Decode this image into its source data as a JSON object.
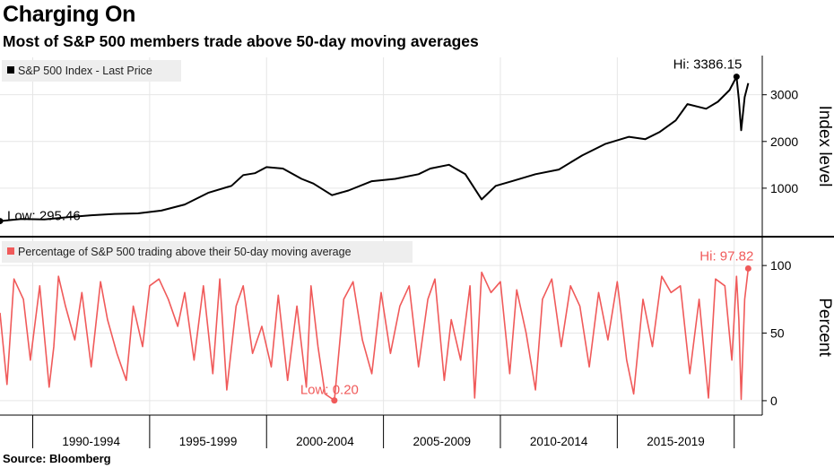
{
  "title": "Charging On",
  "subtitle": "Most of S&P 500 members trade above 50-day moving averages",
  "source": "Source: Bloomberg",
  "chart_data": [
    {
      "type": "line",
      "legend": "S&P 500 Index - Last Price",
      "ylabel": "Index level",
      "ylim": [
        0,
        3800
      ],
      "yticks": [
        1000,
        2000,
        3000
      ],
      "ytick_labels": [
        "1000",
        "2000",
        "3000"
      ],
      "color": "#000000",
      "annotations": {
        "high": "Hi: 3386.15",
        "low": "Low: 295.46"
      },
      "x": [
        1988.6,
        1989.5,
        1990.5,
        1991.5,
        1992.5,
        1993.5,
        1994.5,
        1995.5,
        1996.5,
        1997.5,
        1998.5,
        1999.0,
        1999.5,
        2000.0,
        2000.7,
        2001.5,
        2002.0,
        2002.8,
        2003.5,
        2004.5,
        2005.5,
        2006.5,
        2007.0,
        2007.8,
        2008.5,
        2009.2,
        2009.8,
        2010.5,
        2011.5,
        2012.5,
        2013.5,
        2014.5,
        2015.5,
        2016.2,
        2016.8,
        2017.5,
        2018.0,
        2018.8,
        2019.3,
        2019.8,
        2020.1,
        2020.2,
        2020.3,
        2020.45,
        2020.6
      ],
      "values": [
        296,
        340,
        330,
        380,
        420,
        450,
        460,
        520,
        650,
        900,
        1050,
        1280,
        1320,
        1450,
        1420,
        1200,
        1100,
        850,
        950,
        1150,
        1200,
        1300,
        1420,
        1500,
        1300,
        760,
        1050,
        1150,
        1300,
        1400,
        1700,
        1950,
        2100,
        2050,
        2200,
        2450,
        2800,
        2700,
        2850,
        3100,
        3386,
        2900,
        2240,
        2950,
        3250
      ]
    },
    {
      "type": "line",
      "legend": "Percentage of S&P 500 trading above their 50-day moving average",
      "ylabel": "Percent",
      "ylim": [
        -10,
        120
      ],
      "yticks": [
        0,
        50,
        100
      ],
      "ytick_labels": [
        "0",
        "50",
        "100"
      ],
      "color": "#f05a5a",
      "annotations": {
        "high": "Hi: 97.82",
        "low": "Low: 0.20"
      },
      "x": [
        1988.6,
        1988.9,
        1989.2,
        1989.6,
        1989.9,
        1990.3,
        1990.7,
        1990.9,
        1991.1,
        1991.4,
        1991.8,
        1992.1,
        1992.5,
        1992.9,
        1993.2,
        1993.6,
        1994.0,
        1994.3,
        1994.7,
        1995.0,
        1995.4,
        1995.8,
        1996.2,
        1996.5,
        1996.9,
        1997.3,
        1997.7,
        1998.0,
        1998.3,
        1998.7,
        1999.0,
        1999.4,
        1999.8,
        2000.2,
        2000.5,
        2000.9,
        2001.3,
        2001.7,
        2001.9,
        2002.2,
        2002.5,
        2002.9,
        2003.3,
        2003.7,
        2004.1,
        2004.5,
        2004.9,
        2005.3,
        2005.7,
        2006.1,
        2006.5,
        2006.9,
        2007.2,
        2007.6,
        2007.9,
        2008.3,
        2008.7,
        2008.9,
        2009.2,
        2009.6,
        2010.0,
        2010.4,
        2010.7,
        2011.1,
        2011.5,
        2011.8,
        2012.2,
        2012.6,
        2013.0,
        2013.4,
        2013.8,
        2014.2,
        2014.6,
        2015.0,
        2015.4,
        2015.7,
        2016.1,
        2016.5,
        2016.9,
        2017.3,
        2017.7,
        2018.1,
        2018.5,
        2018.9,
        2019.2,
        2019.6,
        2019.9,
        2020.1,
        2020.2,
        2020.3,
        2020.45,
        2020.6
      ],
      "values": [
        65,
        12,
        90,
        75,
        30,
        85,
        10,
        40,
        92,
        70,
        45,
        80,
        25,
        88,
        60,
        35,
        15,
        70,
        40,
        85,
        90,
        75,
        55,
        80,
        30,
        85,
        20,
        90,
        8,
        70,
        85,
        35,
        55,
        25,
        78,
        15,
        70,
        10,
        85,
        40,
        5,
        0.2,
        75,
        88,
        45,
        20,
        80,
        35,
        70,
        85,
        25,
        75,
        90,
        15,
        60,
        30,
        85,
        2,
        95,
        80,
        88,
        20,
        82,
        50,
        8,
        75,
        90,
        40,
        85,
        70,
        25,
        80,
        45,
        88,
        30,
        5,
        75,
        40,
        92,
        80,
        85,
        20,
        75,
        2,
        90,
        85,
        30,
        92,
        60,
        1,
        75,
        97.82
      ]
    }
  ],
  "xaxis": {
    "xlim": [
      1988.6,
      2021.2
    ],
    "labels": [
      {
        "text": "1990-1994",
        "start": 1990,
        "end": 1995
      },
      {
        "text": "1995-1999",
        "start": 1995,
        "end": 2000
      },
      {
        "text": "2000-2004",
        "start": 2000,
        "end": 2005
      },
      {
        "text": "2005-2009",
        "start": 2005,
        "end": 2010
      },
      {
        "text": "2010-2014",
        "start": 2010,
        "end": 2015
      },
      {
        "text": "2015-2019",
        "start": 2015,
        "end": 2020
      }
    ]
  },
  "colors": {
    "grid": "#e6e6e6",
    "legend_bg": "#eeeeee",
    "separator": "#000000"
  }
}
